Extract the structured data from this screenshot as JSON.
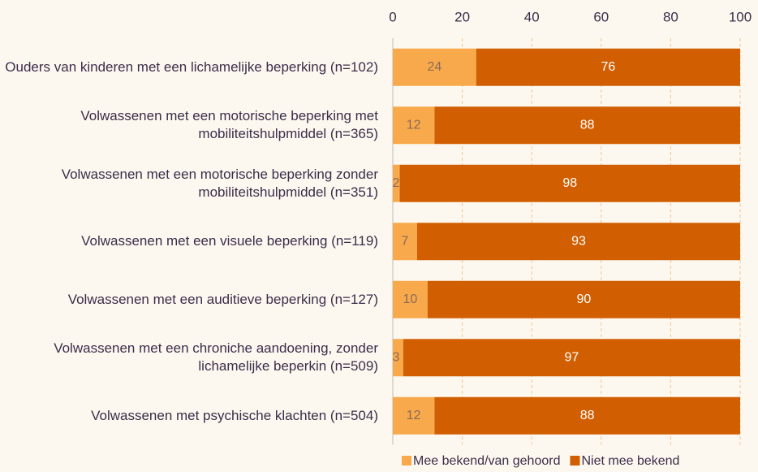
{
  "chart_data": {
    "type": "stacked_barh",
    "categories": [
      "Ouders van kinderen met een lichamelijke beperking (n=102)",
      "Volwassenen met een motorische beperking met mobiliteitshulpmiddel (n=365)",
      "Volwassenen met een motorische beperking zonder mobiliteitshulpmiddel (n=351)",
      "Volwassenen met een visuele beperking (n=119)",
      "Volwassenen met een auditieve beperking (n=127)",
      "Volwassenen met een chroniche aandoening, zonder lichamelijke beperkin (n=509)",
      "Volwassenen met psychische klachten (n=504)"
    ],
    "series": [
      {
        "name": "Mee bekend/van gehoord",
        "color": "#f8a94c",
        "values": [
          24,
          12,
          2,
          7,
          10,
          3,
          12
        ]
      },
      {
        "name": "Niet mee bekend",
        "color": "#d15f02",
        "values": [
          76,
          88,
          98,
          93,
          90,
          97,
          88
        ]
      }
    ],
    "xlim": [
      0,
      100
    ],
    "xticks": [
      0,
      20,
      40,
      60,
      80,
      100
    ],
    "grid": true,
    "legend": "bottom"
  }
}
